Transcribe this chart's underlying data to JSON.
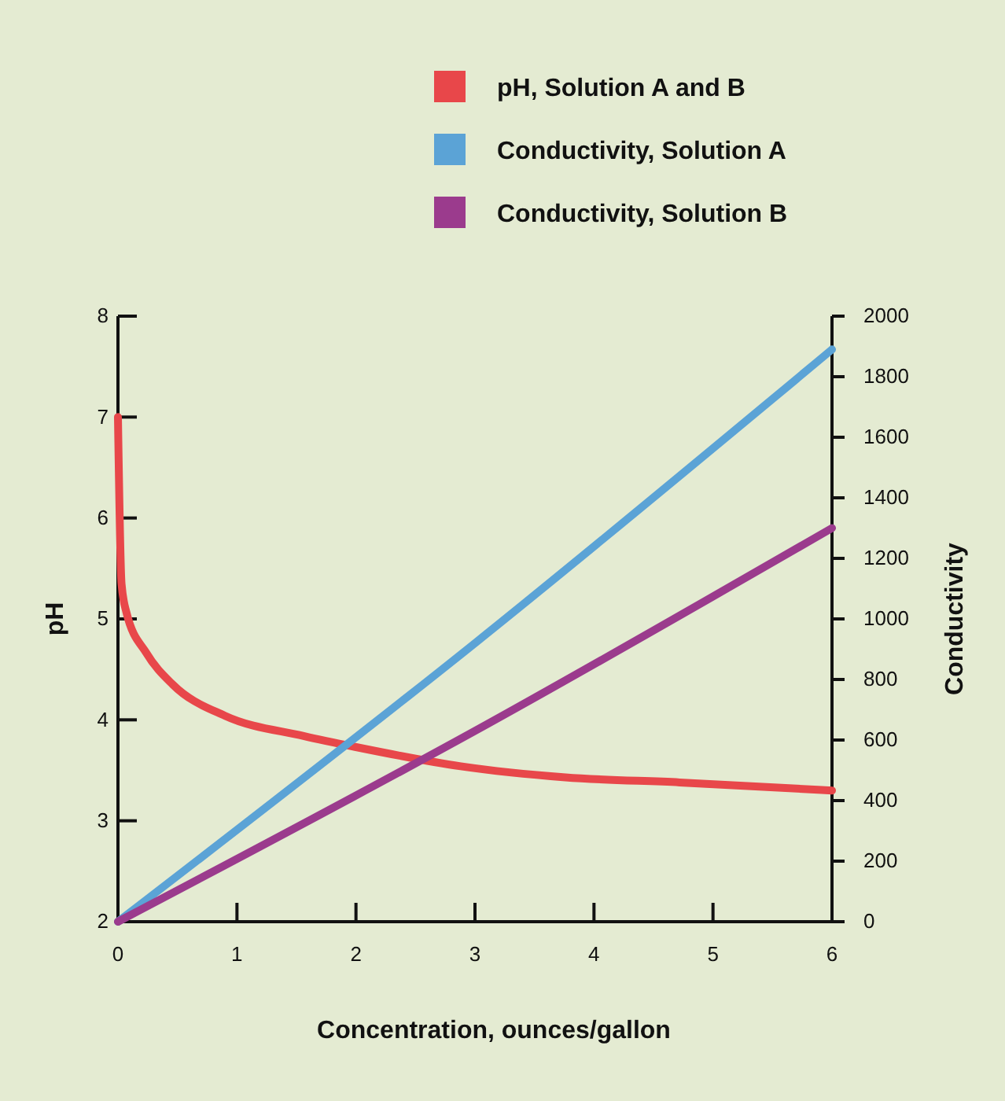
{
  "chart_data": {
    "type": "line",
    "xlabel": "Concentration, ounces/gallon",
    "ylabel": "pH",
    "y2label": "Conductivity",
    "xlim": [
      0,
      6
    ],
    "xticks": [
      0,
      1,
      2,
      3,
      4,
      5,
      6
    ],
    "ylim": [
      2,
      8
    ],
    "yticks": [
      2,
      3,
      4,
      5,
      6,
      7,
      8
    ],
    "y2lim": [
      0,
      2000
    ],
    "y2ticks": [
      0,
      200,
      400,
      600,
      800,
      1000,
      1200,
      1400,
      1600,
      1800,
      2000
    ],
    "legend": "top",
    "grid": false,
    "marker": "none",
    "line_style": "solid",
    "series": [
      {
        "name": "pH, Solution A and B",
        "color": "#e8474a",
        "x": [
          0,
          0.03,
          0.07,
          0.24,
          0.46,
          0.9,
          1.56,
          2.0,
          2.88,
          3.76,
          4.72,
          6
        ],
        "values": [
          7.0,
          5.35,
          5.07,
          4.66,
          4.35,
          4.04,
          3.84,
          3.73,
          3.54,
          3.43,
          3.38,
          3.3
        ]
      },
      {
        "name": "Conductivity, Solution A",
        "color": "#5ba3d6",
        "axis": "y2",
        "x": [
          0,
          3,
          6
        ],
        "values": [
          0,
          920,
          1890
        ]
      },
      {
        "name": "Conductivity, Solution B",
        "color": "#9b3b8d",
        "axis": "y2",
        "x": [
          0,
          3,
          6
        ],
        "values": [
          0,
          630,
          1300
        ]
      }
    ]
  }
}
